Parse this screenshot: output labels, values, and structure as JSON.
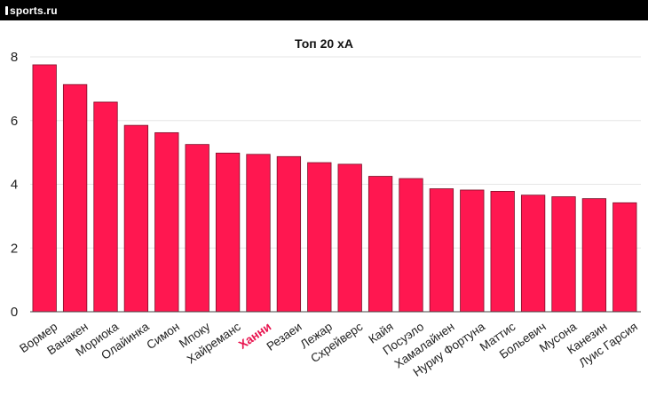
{
  "header": {
    "logo_text": "sports.ru"
  },
  "colors": {
    "bar": "#ff1750",
    "highlight_label": "#e8134e"
  },
  "chart_data": {
    "type": "bar",
    "title": "Топ 20 xA",
    "xlabel": "",
    "ylabel": "",
    "ylim": [
      0,
      8
    ],
    "yticks": [
      0,
      2,
      4,
      6,
      8
    ],
    "grid": true,
    "highlight": "Ханни",
    "categories": [
      "Вормер",
      "Ванакен",
      "Мориока",
      "Олайинка",
      "Симон",
      "Мпоку",
      "Хайреманс",
      "Ханни",
      "Резаеи",
      "Лежар",
      "Схрейверс",
      "Кайя",
      "Посуэло",
      "Хамалайнен",
      "Нуриу Фортуна",
      "Маттис",
      "Больевич",
      "Мусона",
      "Канезин",
      "Луис Гарсия"
    ],
    "values": [
      7.75,
      7.13,
      6.58,
      5.85,
      5.62,
      5.25,
      4.98,
      4.94,
      4.87,
      4.68,
      4.63,
      4.25,
      4.18,
      3.86,
      3.82,
      3.78,
      3.66,
      3.61,
      3.55,
      3.42
    ]
  }
}
